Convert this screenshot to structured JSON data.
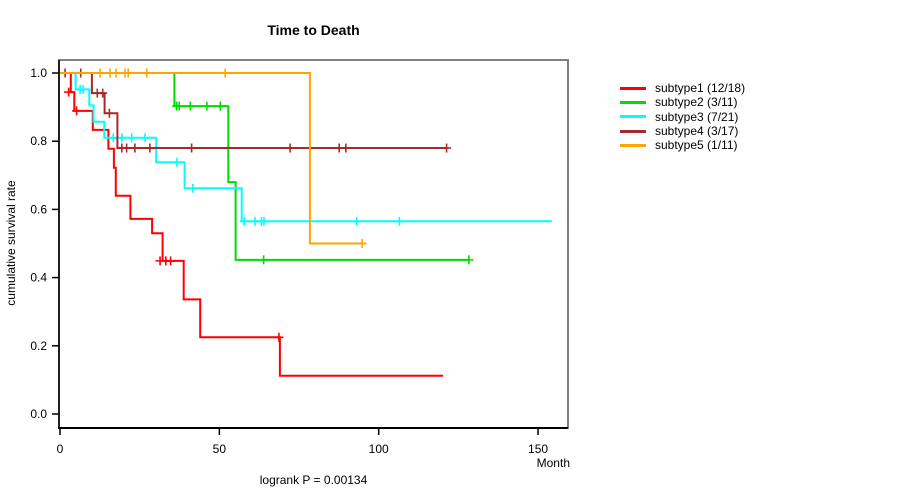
{
  "chart_data": {
    "type": "line",
    "variant": "kaplan-meier-step",
    "title": "Time to Death",
    "xlabel": "Month",
    "ylabel": "cumulative survival rate",
    "footnote": "logrank P = 0.00134",
    "grid": false,
    "legend_position": "right-outside",
    "xlim": [
      0,
      159
    ],
    "ylim": [
      0,
      1.04
    ],
    "x_ticks": [
      0,
      50,
      100,
      150
    ],
    "x_tick_labels": [
      "0",
      "50",
      "100",
      "150"
    ],
    "y_ticks": [
      0.0,
      0.2,
      0.4,
      0.6,
      0.8,
      1.0
    ],
    "y_tick_labels": [
      "0.0",
      "0.2",
      "0.4",
      "0.6",
      "0.8",
      "1.0"
    ],
    "axis_color": "#000000",
    "box_color": "#808080",
    "series": [
      {
        "name": "subtype1 (12/18)",
        "color": "#ff0000",
        "steps": [
          [
            3.4,
            0.944
          ],
          [
            4.5,
            0.889
          ],
          [
            10.3,
            0.833
          ],
          [
            15.2,
            0.778
          ],
          [
            16.9,
            0.722
          ],
          [
            17.5,
            0.64
          ],
          [
            22.1,
            0.572
          ],
          [
            28.9,
            0.53
          ],
          [
            32.2,
            0.449
          ],
          [
            38.8,
            0.336
          ],
          [
            44.0,
            0.225
          ],
          [
            69.0,
            0.112
          ]
        ],
        "end": 120.2,
        "censors": [
          [
            2.7,
            0.944
          ],
          [
            5.2,
            0.889
          ],
          [
            31.4,
            0.449
          ],
          [
            33.2,
            0.449
          ],
          [
            34.7,
            0.449
          ],
          [
            68.7,
            0.225
          ]
        ]
      },
      {
        "name": "subtype2 (3/11)",
        "color": "#00dc00",
        "steps": [
          [
            35.9,
            0.903
          ],
          [
            52.8,
            0.68
          ],
          [
            55.1,
            0.452
          ]
        ],
        "end": 128.5,
        "censors": [
          [
            36.6,
            0.903
          ],
          [
            37.4,
            0.903
          ],
          [
            40.9,
            0.903
          ],
          [
            46.1,
            0.903
          ],
          [
            50.3,
            0.903
          ],
          [
            63.9,
            0.452
          ],
          [
            128.3,
            0.452
          ]
        ]
      },
      {
        "name": "subtype3 (7/21)",
        "color": "#00ffff",
        "steps": [
          [
            4.9,
            0.952
          ],
          [
            9.2,
            0.905
          ],
          [
            10.5,
            0.857
          ],
          [
            13.9,
            0.81
          ],
          [
            30.2,
            0.738
          ],
          [
            39.1,
            0.662
          ],
          [
            57.0,
            0.565
          ]
        ],
        "end": 154.3,
        "censors": [
          [
            6.3,
            0.952
          ],
          [
            7.3,
            0.952
          ],
          [
            16.7,
            0.81
          ],
          [
            19.4,
            0.81
          ],
          [
            22.5,
            0.81
          ],
          [
            26.7,
            0.81
          ],
          [
            36.7,
            0.738
          ],
          [
            41.7,
            0.662
          ],
          [
            57.8,
            0.565
          ],
          [
            61.2,
            0.565
          ],
          [
            63.2,
            0.565
          ],
          [
            64.0,
            0.565
          ],
          [
            93.1,
            0.565
          ],
          [
            106.5,
            0.565
          ]
        ]
      },
      {
        "name": "subtype4 (3/17)",
        "color": "#a52a2a",
        "steps": [
          [
            10.0,
            0.941
          ],
          [
            14.0,
            0.882
          ],
          [
            18.0,
            0.78
          ]
        ],
        "end": 121.3,
        "censors": [
          [
            1.6,
            1.0
          ],
          [
            6.5,
            1.0
          ],
          [
            11.7,
            0.941
          ],
          [
            13.4,
            0.941
          ],
          [
            15.5,
            0.882
          ],
          [
            19.4,
            0.78
          ],
          [
            20.9,
            0.78
          ],
          [
            23.5,
            0.78
          ],
          [
            28.2,
            0.78
          ],
          [
            41.3,
            0.78
          ],
          [
            72.2,
            0.78
          ],
          [
            87.6,
            0.78
          ],
          [
            89.7,
            0.78
          ],
          [
            121.3,
            0.78
          ]
        ]
      },
      {
        "name": "subtype5 (1/11)",
        "color": "#ffa500",
        "steps": [
          [
            78.4,
            0.5
          ]
        ],
        "end": 95.7,
        "censors": [
          [
            12.6,
            1.0
          ],
          [
            15.7,
            1.0
          ],
          [
            17.6,
            1.0
          ],
          [
            20.4,
            1.0
          ],
          [
            21.4,
            1.0
          ],
          [
            27.2,
            1.0
          ],
          [
            51.8,
            1.0
          ],
          [
            94.8,
            0.5
          ]
        ]
      }
    ]
  }
}
